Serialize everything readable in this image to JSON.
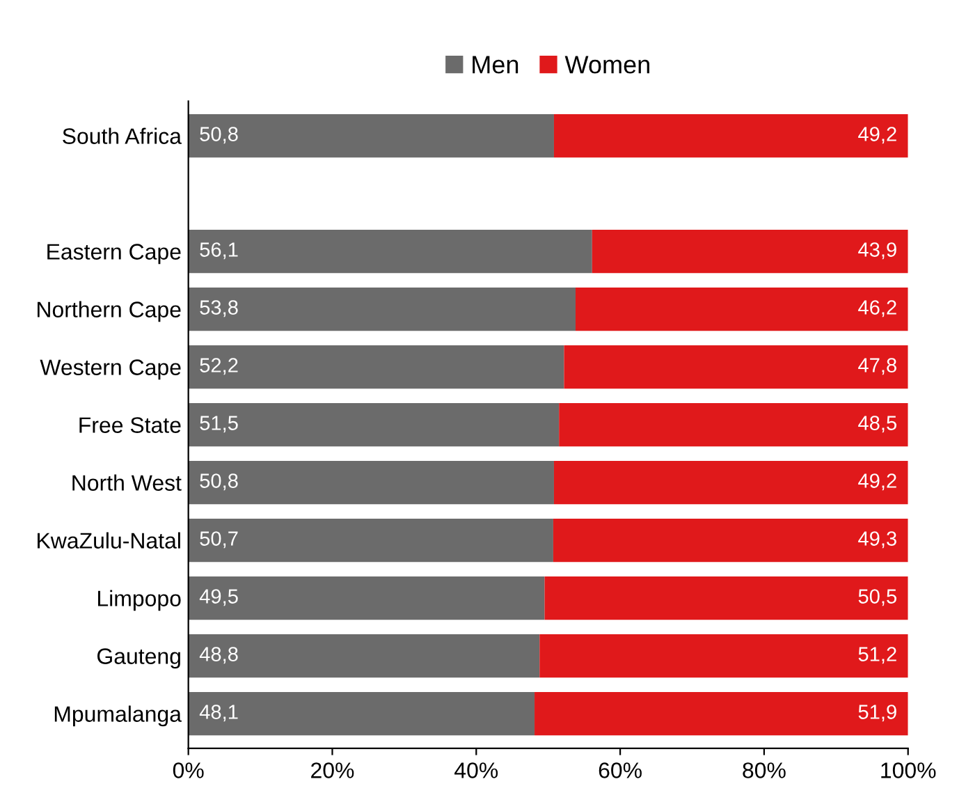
{
  "chart_data": {
    "type": "bar",
    "orientation": "horizontal",
    "stacked": true,
    "categories": [
      "South Africa",
      null,
      "Eastern Cape",
      "Northern Cape",
      "Western Cape",
      "Free State",
      "North West",
      "KwaZulu-Natal",
      "Limpopo",
      "Gauteng",
      "Mpumalanga"
    ],
    "series": [
      {
        "name": "Men",
        "color": "#6b6b6b",
        "values": [
          50.8,
          null,
          56.1,
          53.8,
          52.2,
          51.5,
          50.8,
          50.7,
          49.5,
          48.8,
          48.1
        ],
        "value_labels": [
          "50,8",
          null,
          "56,1",
          "53,8",
          "52,2",
          "51,5",
          "50,8",
          "50,7",
          "49,5",
          "48,8",
          "48,1"
        ]
      },
      {
        "name": "Women",
        "color": "#e0191b",
        "values": [
          49.2,
          null,
          43.9,
          46.2,
          47.8,
          48.5,
          49.2,
          49.3,
          50.5,
          51.2,
          51.9
        ],
        "value_labels": [
          "49,2",
          null,
          "43,9",
          "46,2",
          "47,8",
          "48,5",
          "49,2",
          "49,3",
          "50,5",
          "51,2",
          "51,9"
        ]
      }
    ],
    "xlim": [
      0,
      100
    ],
    "xticks": [
      {
        "value": 0,
        "label": "0%"
      },
      {
        "value": 20,
        "label": "20%"
      },
      {
        "value": 40,
        "label": "40%"
      },
      {
        "value": 60,
        "label": "60%"
      },
      {
        "value": 80,
        "label": "80%"
      },
      {
        "value": 100,
        "label": "100%"
      }
    ],
    "grid": false,
    "legend": "top"
  }
}
